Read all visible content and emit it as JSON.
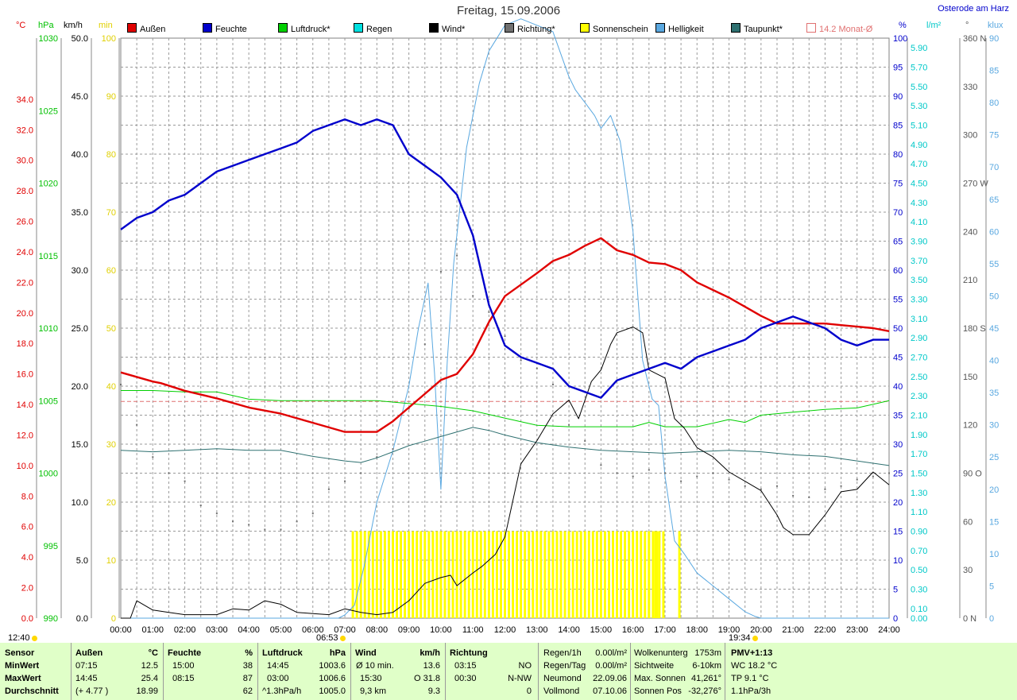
{
  "title": "Freitag, 15.09.2006",
  "location": "Osterode am Harz",
  "units": {
    "temp": "°C",
    "hpa": "hPa",
    "kmh": "km/h",
    "min": "min",
    "pct": "%",
    "wm2": "l/m²",
    "deg": "°",
    "klux": "klux"
  },
  "colors": {
    "temp": "#e00000",
    "humidity": "#0000cc",
    "pressure": "#00d000",
    "rain": "#00e0e0",
    "wind": "#000000",
    "direction": "#707070",
    "sunshine": "#ffff00",
    "brightness": "#5aa8e0",
    "dewpoint": "#2e7070",
    "monthavg": "#e07070",
    "sunmin": "#e0d000",
    "sunmark": "#ffd800"
  },
  "legend": [
    {
      "label": "Außen",
      "color": "#e00000"
    },
    {
      "label": "Feuchte",
      "color": "#0000cc"
    },
    {
      "label": "Luftdruck*",
      "color": "#00d000"
    },
    {
      "label": "Regen",
      "color": "#00e0e0"
    },
    {
      "label": "Wind*",
      "color": "#000000"
    },
    {
      "label": "Richtung*",
      "color": "#707070"
    },
    {
      "label": "Sonnenschein",
      "color": "#ffff00"
    },
    {
      "label": "Helligkeit",
      "color": "#5aa8e0"
    },
    {
      "label": "Taupunkt*",
      "color": "#2e7070"
    },
    {
      "label": "14.2 Monat-Ø",
      "color": "#e07070",
      "outline": true
    }
  ],
  "time_markers": {
    "sunrise_day": "12:40",
    "sunrise": "06:53",
    "sunset": "19:34"
  },
  "chart_data": {
    "type": "line",
    "x_unit": "hours",
    "x_ticks": [
      "00:00",
      "01:00",
      "02:00",
      "03:00",
      "04:00",
      "05:00",
      "06:00",
      "07:00",
      "08:00",
      "09:00",
      "10:00",
      "11:00",
      "12:00",
      "13:00",
      "14:00",
      "15:00",
      "16:00",
      "17:00",
      "18:00",
      "19:00",
      "20:00",
      "21:00",
      "22:00",
      "23:00",
      "24:00"
    ],
    "axes": {
      "temp": {
        "label": "°C",
        "range": [
          0,
          38
        ],
        "ticks": [
          "0.0",
          "2.0",
          "4.0",
          "6.0",
          "8.0",
          "10.0",
          "12.0",
          "14.0",
          "16.0",
          "18.0",
          "20.0",
          "22.0",
          "24.0",
          "26.0",
          "28.0",
          "30.0",
          "32.0",
          "34.0"
        ]
      },
      "hpa": {
        "label": "hPa",
        "range": [
          990,
          1030
        ],
        "ticks": [
          "990",
          "995",
          "1000",
          "1005",
          "1010",
          "1015",
          "1020",
          "1025",
          "1030"
        ]
      },
      "kmh": {
        "label": "km/h",
        "range": [
          0,
          50
        ],
        "ticks": [
          "0.0",
          "5.0",
          "10.0",
          "15.0",
          "20.0",
          "25.0",
          "30.0",
          "35.0",
          "40.0",
          "45.0",
          "50.0"
        ]
      },
      "min": {
        "label": "min",
        "range": [
          0,
          100
        ],
        "ticks": [
          "0",
          "10",
          "20",
          "30",
          "40",
          "50",
          "60",
          "70",
          "80",
          "90",
          "100"
        ]
      },
      "pct": {
        "label": "%",
        "range": [
          0,
          100
        ],
        "ticks": [
          "0",
          "5",
          "10",
          "15",
          "20",
          "25",
          "30",
          "35",
          "40",
          "45",
          "50",
          "55",
          "60",
          "65",
          "70",
          "75",
          "80",
          "85",
          "90",
          "95",
          "100"
        ]
      },
      "wm2": {
        "label": "l/m²",
        "range": [
          0,
          6
        ],
        "ticks": [
          "0.00",
          "0.10",
          "0.30",
          "0.50",
          "0.70",
          "0.90",
          "1.10",
          "1.30",
          "1.50",
          "1.70",
          "1.90",
          "2.10",
          "2.30",
          "2.50",
          "2.70",
          "2.90",
          "3.10",
          "3.30",
          "3.50",
          "3.70",
          "3.90",
          "4.10",
          "4.30",
          "4.50",
          "4.70",
          "4.90",
          "5.10",
          "5.30",
          "5.50",
          "5.70",
          "5.90"
        ]
      },
      "deg": {
        "label": "°",
        "range": [
          0,
          360
        ],
        "ticks": [
          "0 N",
          "30",
          "60",
          "90 O",
          "120",
          "150",
          "180 S",
          "210",
          "240",
          "270 W",
          "300",
          "330",
          "360 N"
        ]
      },
      "klux": {
        "label": "klux",
        "range": [
          0,
          90
        ],
        "ticks": [
          "0",
          "5",
          "10",
          "15",
          "20",
          "25",
          "30",
          "35",
          "40",
          "45",
          "50",
          "55",
          "60",
          "65",
          "70",
          "75",
          "80",
          "85",
          "90"
        ]
      }
    },
    "month_avg_temp": 14.2,
    "series": [
      {
        "name": "Außen",
        "axis": "temp",
        "x": [
          0,
          1,
          1.25,
          2,
          3,
          4,
          5,
          6,
          7,
          8,
          8.5,
          9,
          9.5,
          10,
          10.5,
          11,
          11.5,
          12,
          13,
          13.5,
          14,
          14.5,
          15,
          15.5,
          16,
          16.5,
          17,
          17.5,
          18,
          18.5,
          19,
          19.5,
          20,
          20.5,
          21,
          21.5,
          22,
          22.5,
          23,
          23.5,
          24
        ],
        "y": [
          16.1,
          15.5,
          15.4,
          14.9,
          14.4,
          13.8,
          13.4,
          12.8,
          12.2,
          12.2,
          12.9,
          13.8,
          14.7,
          15.6,
          16.0,
          17.3,
          19.4,
          21.1,
          22.6,
          23.4,
          23.8,
          24.4,
          24.9,
          24.1,
          23.8,
          23.3,
          23.2,
          22.8,
          22.0,
          21.5,
          21.0,
          20.4,
          19.8,
          19.3,
          19.3,
          19.3,
          19.3,
          19.2,
          19.1,
          19.0,
          18.8
        ]
      },
      {
        "name": "Feuchte",
        "axis": "pct",
        "x": [
          0,
          0.5,
          1,
          1.5,
          2,
          2.5,
          3,
          3.5,
          4,
          4.5,
          5,
          5.5,
          6,
          6.5,
          7,
          7.5,
          8,
          8.5,
          9,
          9.5,
          10,
          10.5,
          11,
          11.5,
          12,
          12.5,
          13,
          13.5,
          14,
          14.5,
          15,
          15.5,
          16,
          16.5,
          17,
          17.5,
          18,
          18.5,
          19,
          19.5,
          20,
          20.5,
          21,
          21.5,
          22,
          22.5,
          23,
          23.5,
          24
        ],
        "y": [
          67,
          69,
          70,
          72,
          73,
          75,
          77,
          78,
          79,
          80,
          81,
          82,
          84,
          85,
          86,
          85,
          86,
          85,
          80,
          78,
          76,
          73,
          66,
          54,
          47,
          45,
          44,
          43,
          40,
          39,
          38,
          41,
          42,
          43,
          44,
          43,
          45,
          46,
          47,
          48,
          50,
          51,
          52,
          51,
          50,
          48,
          47,
          48,
          48
        ]
      },
      {
        "name": "Luftdruck*",
        "axis": "hpa",
        "x": [
          0,
          1,
          2,
          3,
          4,
          5,
          6,
          7,
          8,
          9,
          10,
          11,
          12,
          13,
          14,
          15,
          16,
          16.5,
          17,
          18,
          19,
          19.5,
          20,
          21,
          22,
          23,
          24
        ],
        "y": [
          1005.7,
          1005.7,
          1005.6,
          1005.6,
          1005.1,
          1005.0,
          1005.0,
          1005.0,
          1005.0,
          1004.8,
          1004.6,
          1004.3,
          1003.8,
          1003.3,
          1003.2,
          1003.2,
          1003.2,
          1003.5,
          1003.2,
          1003.2,
          1003.7,
          1003.5,
          1004.0,
          1004.2,
          1004.4,
          1004.5,
          1005.0
        ]
      },
      {
        "name": "Taupunkt*",
        "axis": "temp",
        "x": [
          0,
          1,
          2,
          3,
          4,
          5,
          6,
          7,
          7.5,
          8,
          8.5,
          9,
          9.5,
          10,
          10.5,
          11,
          11.5,
          12,
          13,
          14,
          15,
          16,
          17,
          18,
          19,
          20,
          21,
          22,
          23,
          24
        ],
        "y": [
          11.0,
          10.9,
          11.0,
          11.1,
          11.0,
          11.0,
          10.6,
          10.3,
          10.2,
          10.5,
          10.9,
          11.3,
          11.6,
          11.9,
          12.2,
          12.5,
          12.3,
          12.0,
          11.5,
          11.2,
          11.0,
          10.9,
          10.8,
          10.9,
          11.0,
          10.9,
          10.7,
          10.6,
          10.3,
          10.0
        ]
      },
      {
        "name": "Helligkeit",
        "axis": "klux",
        "x": [
          0,
          6.8,
          7.0,
          7.3,
          7.6,
          8.0,
          8.5,
          9.0,
          9.3,
          9.6,
          9.8,
          10.0,
          10.2,
          10.4,
          10.8,
          11.2,
          11.5,
          12.0,
          12.5,
          13.0,
          13.5,
          14.0,
          14.2,
          14.5,
          14.8,
          15.0,
          15.3,
          15.6,
          16.0,
          16.3,
          16.6,
          16.8,
          17.0,
          17.3,
          17.6,
          18.0,
          18.5,
          19.0,
          19.5,
          19.8,
          20.0,
          24
        ],
        "y": [
          0,
          0,
          0.5,
          2,
          8,
          18,
          26,
          36,
          45,
          52,
          38,
          20,
          40,
          55,
          73,
          83,
          88,
          92,
          93,
          92,
          91,
          84,
          82,
          80,
          78,
          76,
          78,
          74,
          60,
          40,
          34,
          33,
          22,
          12,
          10,
          7,
          5,
          3,
          1,
          0.3,
          0,
          0
        ]
      },
      {
        "name": "Wind*",
        "axis": "kmh",
        "x": [
          0,
          0.3,
          0.5,
          1,
          1.5,
          2,
          3,
          3.5,
          4,
          4.5,
          5,
          5.5,
          6,
          6.5,
          7,
          7.5,
          8,
          8.5,
          9,
          9.5,
          10,
          10.3,
          10.5,
          11,
          11.3,
          11.7,
          12,
          12.5,
          13,
          13.5,
          14,
          14.3,
          14.7,
          15,
          15.3,
          15.5,
          16,
          16.3,
          16.5,
          17,
          17.3,
          17.6,
          18,
          18.5,
          19,
          19.5,
          20,
          20.5,
          20.7,
          21,
          21.5,
          22,
          22.5,
          23,
          23.5,
          24
        ],
        "y": [
          0,
          0,
          1.5,
          0.7,
          0.5,
          0.3,
          0.3,
          0.8,
          0.7,
          1.5,
          1.2,
          0.5,
          0.4,
          0.3,
          0.8,
          0.5,
          0.3,
          0.5,
          1.5,
          3.0,
          3.5,
          3.7,
          2.8,
          3.9,
          4.5,
          5.5,
          7.0,
          13.3,
          15.3,
          17.6,
          18.8,
          17.2,
          20.4,
          21.4,
          23.6,
          24.6,
          25.1,
          24.6,
          21.4,
          20.7,
          17.2,
          16.4,
          14.7,
          13.9,
          12.6,
          11.8,
          11.0,
          8.9,
          7.8,
          7.2,
          7.2,
          8.9,
          10.9,
          11.1,
          12.6,
          11.5
        ]
      },
      {
        "name": "Richtung*",
        "axis": "deg",
        "x": [
          0,
          0.5,
          1,
          1.5,
          2,
          2.5,
          3,
          3.5,
          4,
          4.5,
          5,
          5.5,
          6,
          6.5,
          7,
          7.5,
          8,
          8.5,
          9,
          9.5,
          10,
          10.5,
          11,
          11.5,
          12,
          12.5,
          13,
          13.5,
          14,
          14.5,
          15,
          15.5,
          16,
          16.5,
          17,
          17.5,
          18,
          18.5,
          19,
          19.5,
          20,
          20.5,
          21,
          21.5,
          22,
          22.5,
          23,
          23.5,
          24
        ],
        "y": [
          145,
          120,
          100,
          90,
          85,
          70,
          65,
          60,
          58,
          55,
          55,
          60,
          65,
          80,
          85,
          90,
          100,
          105,
          130,
          170,
          215,
          225,
          200,
          190,
          175,
          160,
          155,
          145,
          120,
          110,
          95,
          90,
          88,
          92,
          90,
          85,
          88,
          90,
          86,
          82,
          80,
          82,
          76,
          75,
          80,
          82,
          86,
          88,
          90
        ]
      }
    ],
    "sunshine_minutes": {
      "axis": "min",
      "bar_value": 15,
      "intervals": [
        [
          7.25,
          10.5
        ],
        [
          10.5,
          16.8
        ],
        [
          16.5,
          16.55
        ],
        [
          16.7,
          17.0
        ],
        [
          17.45,
          17.5
        ]
      ]
    }
  },
  "stats": {
    "sensor": {
      "h": "Sensor",
      "rows": [
        "MinWert",
        "MaxWert",
        "Durchschnitt"
      ]
    },
    "aussen": {
      "h": "Außen",
      "unit": "°C",
      "rows": [
        [
          "07:15",
          "12.5"
        ],
        [
          "14:45",
          "25.4"
        ],
        [
          "(+ 4.77 )",
          "18.99"
        ]
      ]
    },
    "feuchte": {
      "h": "Feuchte",
      "unit": "%",
      "rows": [
        [
          "15:00",
          "38"
        ],
        [
          "08:15",
          "87"
        ],
        [
          "",
          "62"
        ]
      ]
    },
    "luftdruck": {
      "h": "Luftdruck",
      "unit": "hPa",
      "rows": [
        [
          "14:45",
          "1003.6"
        ],
        [
          "03:00",
          "1006.6"
        ],
        [
          "^1.3hPa/h",
          "1005.0"
        ]
      ]
    },
    "wind": {
      "h": "Wind",
      "unit": "km/h",
      "rows": [
        [
          "Ø 10 min.",
          "13.6"
        ],
        [
          "15:30",
          "O 31.8"
        ],
        [
          "9,3 km",
          "9.3"
        ]
      ]
    },
    "richtung": {
      "h": "Richtung",
      "rows": [
        [
          "03:15",
          "NO"
        ],
        [
          "00:30",
          "N-NW"
        ],
        [
          "",
          "0"
        ]
      ]
    },
    "regen": {
      "rows": [
        [
          "Regen/1h",
          "0.00l/m²"
        ],
        [
          "Regen/Tag",
          "0.00l/m²"
        ],
        [
          "Neumond",
          "22.09.06"
        ],
        [
          "Vollmond",
          "07.10.06"
        ]
      ]
    },
    "wolken": {
      "rows": [
        [
          "Wolkenunterg",
          "1753m"
        ],
        [
          "Sichtweite",
          "6-10km"
        ],
        [
          "Max. Sonnen",
          "41,261°"
        ],
        [
          "Sonnen Pos",
          "-32,276°"
        ]
      ]
    },
    "pmv": {
      "rows": [
        "PMV+1:13",
        "WC 18.2 °C",
        "TP 9.1 °C",
        "1.1hPa/3h"
      ]
    }
  }
}
